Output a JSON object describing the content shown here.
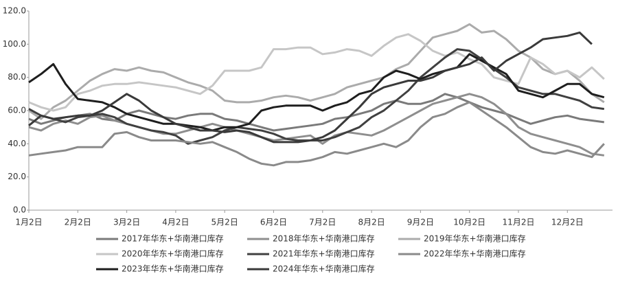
{
  "chart_data": {
    "type": "line",
    "categories": [
      "1月2日",
      null,
      null,
      null,
      "2月2日",
      null,
      null,
      null,
      "3月2日",
      null,
      null,
      null,
      "4月2日",
      null,
      null,
      null,
      "5月2日",
      null,
      null,
      null,
      "6月2日",
      null,
      null,
      null,
      "7月2日",
      null,
      null,
      null,
      "8月2日",
      null,
      null,
      null,
      "9月2日",
      null,
      null,
      null,
      "10月2日",
      null,
      null,
      null,
      "11月2日",
      null,
      null,
      null,
      "12月2日",
      null,
      null,
      null
    ],
    "ylim": [
      0,
      120
    ],
    "yticks": [
      {
        "value": 0,
        "label": "0.0"
      },
      {
        "value": 20,
        "label": "20.0"
      },
      {
        "value": 40,
        "label": "40.0"
      },
      {
        "value": 60,
        "label": "60.0"
      },
      {
        "value": 80,
        "label": "80.0"
      },
      {
        "value": 100,
        "label": "100.0"
      },
      {
        "value": 120,
        "label": "120.0"
      }
    ],
    "series": [
      {
        "name": "2017年华东+华南港口库存",
        "color": "#7a7a7a",
        "values": [
          55,
          52,
          54,
          56,
          57,
          58,
          55,
          54,
          58,
          60,
          58,
          56,
          55,
          57,
          58,
          58,
          55,
          54,
          52,
          50,
          48,
          49,
          50,
          51,
          52,
          55,
          56,
          58,
          60,
          64,
          66,
          64,
          64,
          66,
          70,
          68,
          65,
          62,
          60,
          58,
          55,
          52,
          54,
          56,
          57,
          55,
          54,
          53
        ]
      },
      {
        "name": "2018年华东+华南港口库存",
        "color": "#8e8e8e",
        "values": [
          50,
          48,
          52,
          54,
          52,
          56,
          57,
          54,
          52,
          50,
          48,
          46,
          46,
          48,
          50,
          52,
          50,
          48,
          46,
          44,
          42,
          43,
          44,
          45,
          40,
          45,
          47,
          46,
          45,
          48,
          52,
          56,
          60,
          64,
          66,
          68,
          70,
          68,
          64,
          58,
          50,
          46,
          44,
          42,
          40,
          38,
          34,
          33
        ]
      },
      {
        "name": "2019年华东+华南港口库存",
        "color": "#ababab",
        "values": [
          60,
          55,
          62,
          66,
          72,
          78,
          82,
          85,
          84,
          86,
          84,
          83,
          80,
          77,
          75,
          72,
          66,
          65,
          65,
          66,
          68,
          69,
          68,
          66,
          68,
          70,
          74,
          76,
          78,
          80,
          85,
          88,
          96,
          104,
          106,
          108,
          112,
          107,
          108,
          103,
          96,
          92,
          85,
          82,
          84,
          78,
          70,
          65
        ]
      },
      {
        "name": "2020年华东+华南港口库存",
        "color": "#c6c6c6",
        "values": [
          65,
          62,
          60,
          62,
          70,
          72,
          75,
          76,
          76,
          77,
          76,
          75,
          74,
          72,
          70,
          75,
          84,
          84,
          84,
          86,
          97,
          97,
          98,
          98,
          94,
          95,
          97,
          96,
          93,
          99,
          104,
          106,
          102,
          96,
          93,
          95,
          91,
          88,
          80,
          78,
          76,
          92,
          88,
          82,
          84,
          80,
          86,
          79
        ]
      },
      {
        "name": "2021年华东+华南港口库存",
        "color": "#404040",
        "values": [
          61,
          57,
          55,
          53,
          56,
          57,
          58,
          56,
          52,
          50,
          48,
          47,
          45,
          40,
          42,
          44,
          48,
          50,
          49,
          48,
          46,
          43,
          42,
          42,
          42,
          44,
          47,
          50,
          56,
          60,
          66,
          72,
          80,
          86,
          92,
          97,
          96,
          91,
          85,
          80,
          74,
          72,
          70,
          70,
          68,
          66,
          62,
          61
        ]
      },
      {
        "name": "2022年华东+华南港口库存",
        "color": "#8a8a8a",
        "values": [
          33,
          34,
          35,
          36,
          38,
          38,
          38,
          46,
          47,
          44,
          42,
          42,
          42,
          41,
          40,
          41,
          38,
          35,
          31,
          28,
          27,
          29,
          29,
          30,
          32,
          35,
          34,
          36,
          38,
          40,
          38,
          42,
          50,
          56,
          58,
          62,
          65,
          60,
          55,
          50,
          44,
          38,
          35,
          34,
          36,
          34,
          32,
          40
        ]
      },
      {
        "name": "2023年华东+华南港口库存",
        "color": "#1e1e1e",
        "values": [
          77,
          82,
          88,
          76,
          67,
          66,
          65,
          62,
          58,
          56,
          54,
          52,
          52,
          51,
          50,
          48,
          50,
          50,
          52,
          60,
          62,
          63,
          63,
          63,
          60,
          63,
          65,
          70,
          72,
          80,
          84,
          82,
          79,
          82,
          84,
          86,
          94,
          90,
          86,
          82,
          72,
          70,
          68,
          72,
          76,
          76,
          70,
          68
        ]
      },
      {
        "name": "2024年华东+华南港口库存",
        "color": "#3a3a3a",
        "values": [
          51,
          57,
          55,
          56,
          57,
          57,
          60,
          65,
          70,
          66,
          60,
          56,
          52,
          50,
          48,
          48,
          47,
          48,
          47,
          44,
          41,
          41,
          41,
          42,
          44,
          48,
          55,
          62,
          70,
          74,
          76,
          78,
          78,
          80,
          84,
          86,
          88,
          92,
          84,
          90,
          94,
          98,
          103,
          104,
          105,
          107,
          100,
          null
        ]
      }
    ]
  }
}
